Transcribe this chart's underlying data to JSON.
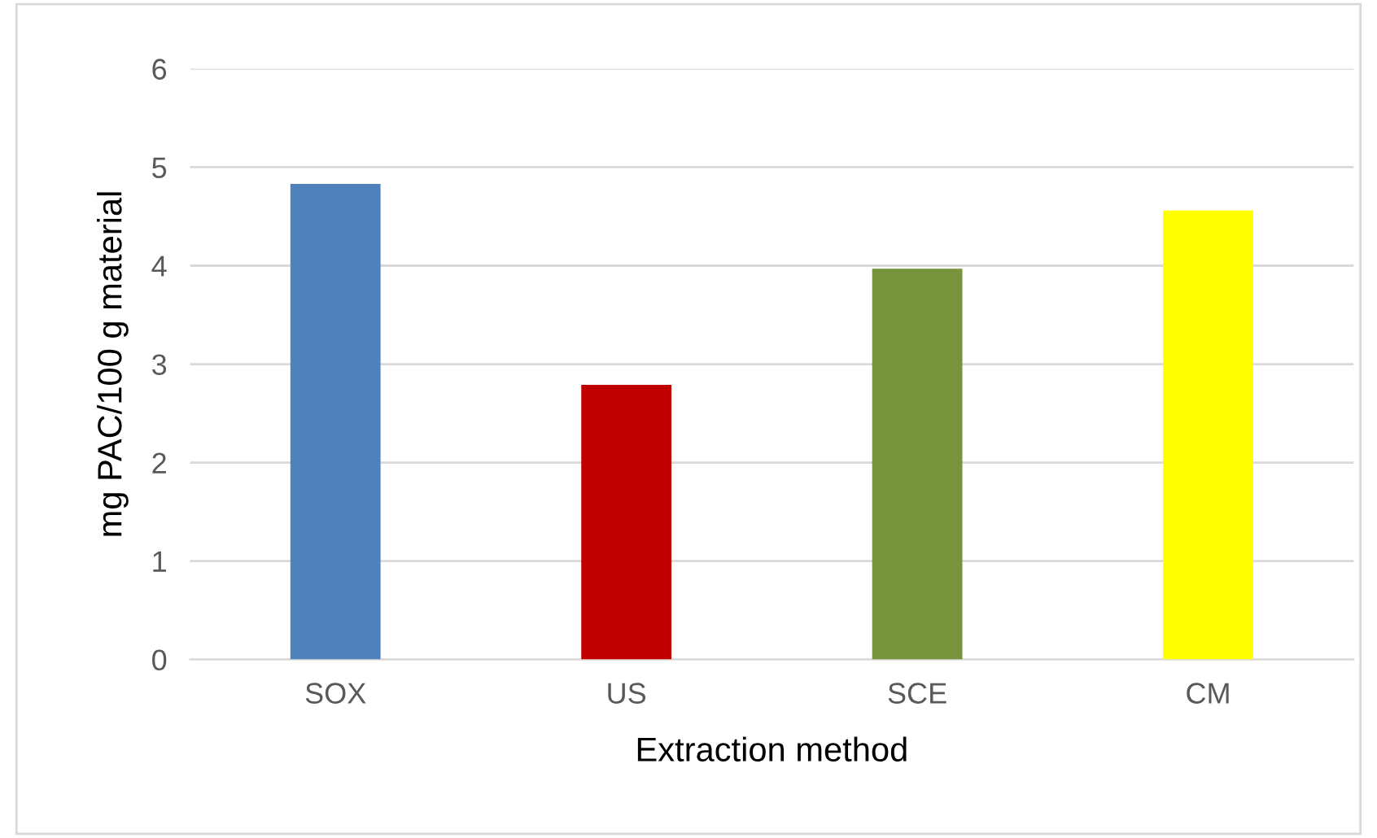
{
  "chart_data": {
    "type": "bar",
    "xlabel": "Extraction method",
    "ylabel": "mg PAC/100 g material",
    "categories": [
      "SOX",
      "US",
      "SCE",
      "CM"
    ],
    "values": [
      4.83,
      2.79,
      3.97,
      4.56
    ],
    "colors": [
      "#4f81bd",
      "#c00000",
      "#77933c",
      "#ffff00"
    ],
    "ylim": [
      0,
      6
    ],
    "yticks": [
      0,
      1,
      2,
      3,
      4,
      5,
      6
    ],
    "grid": "y"
  }
}
